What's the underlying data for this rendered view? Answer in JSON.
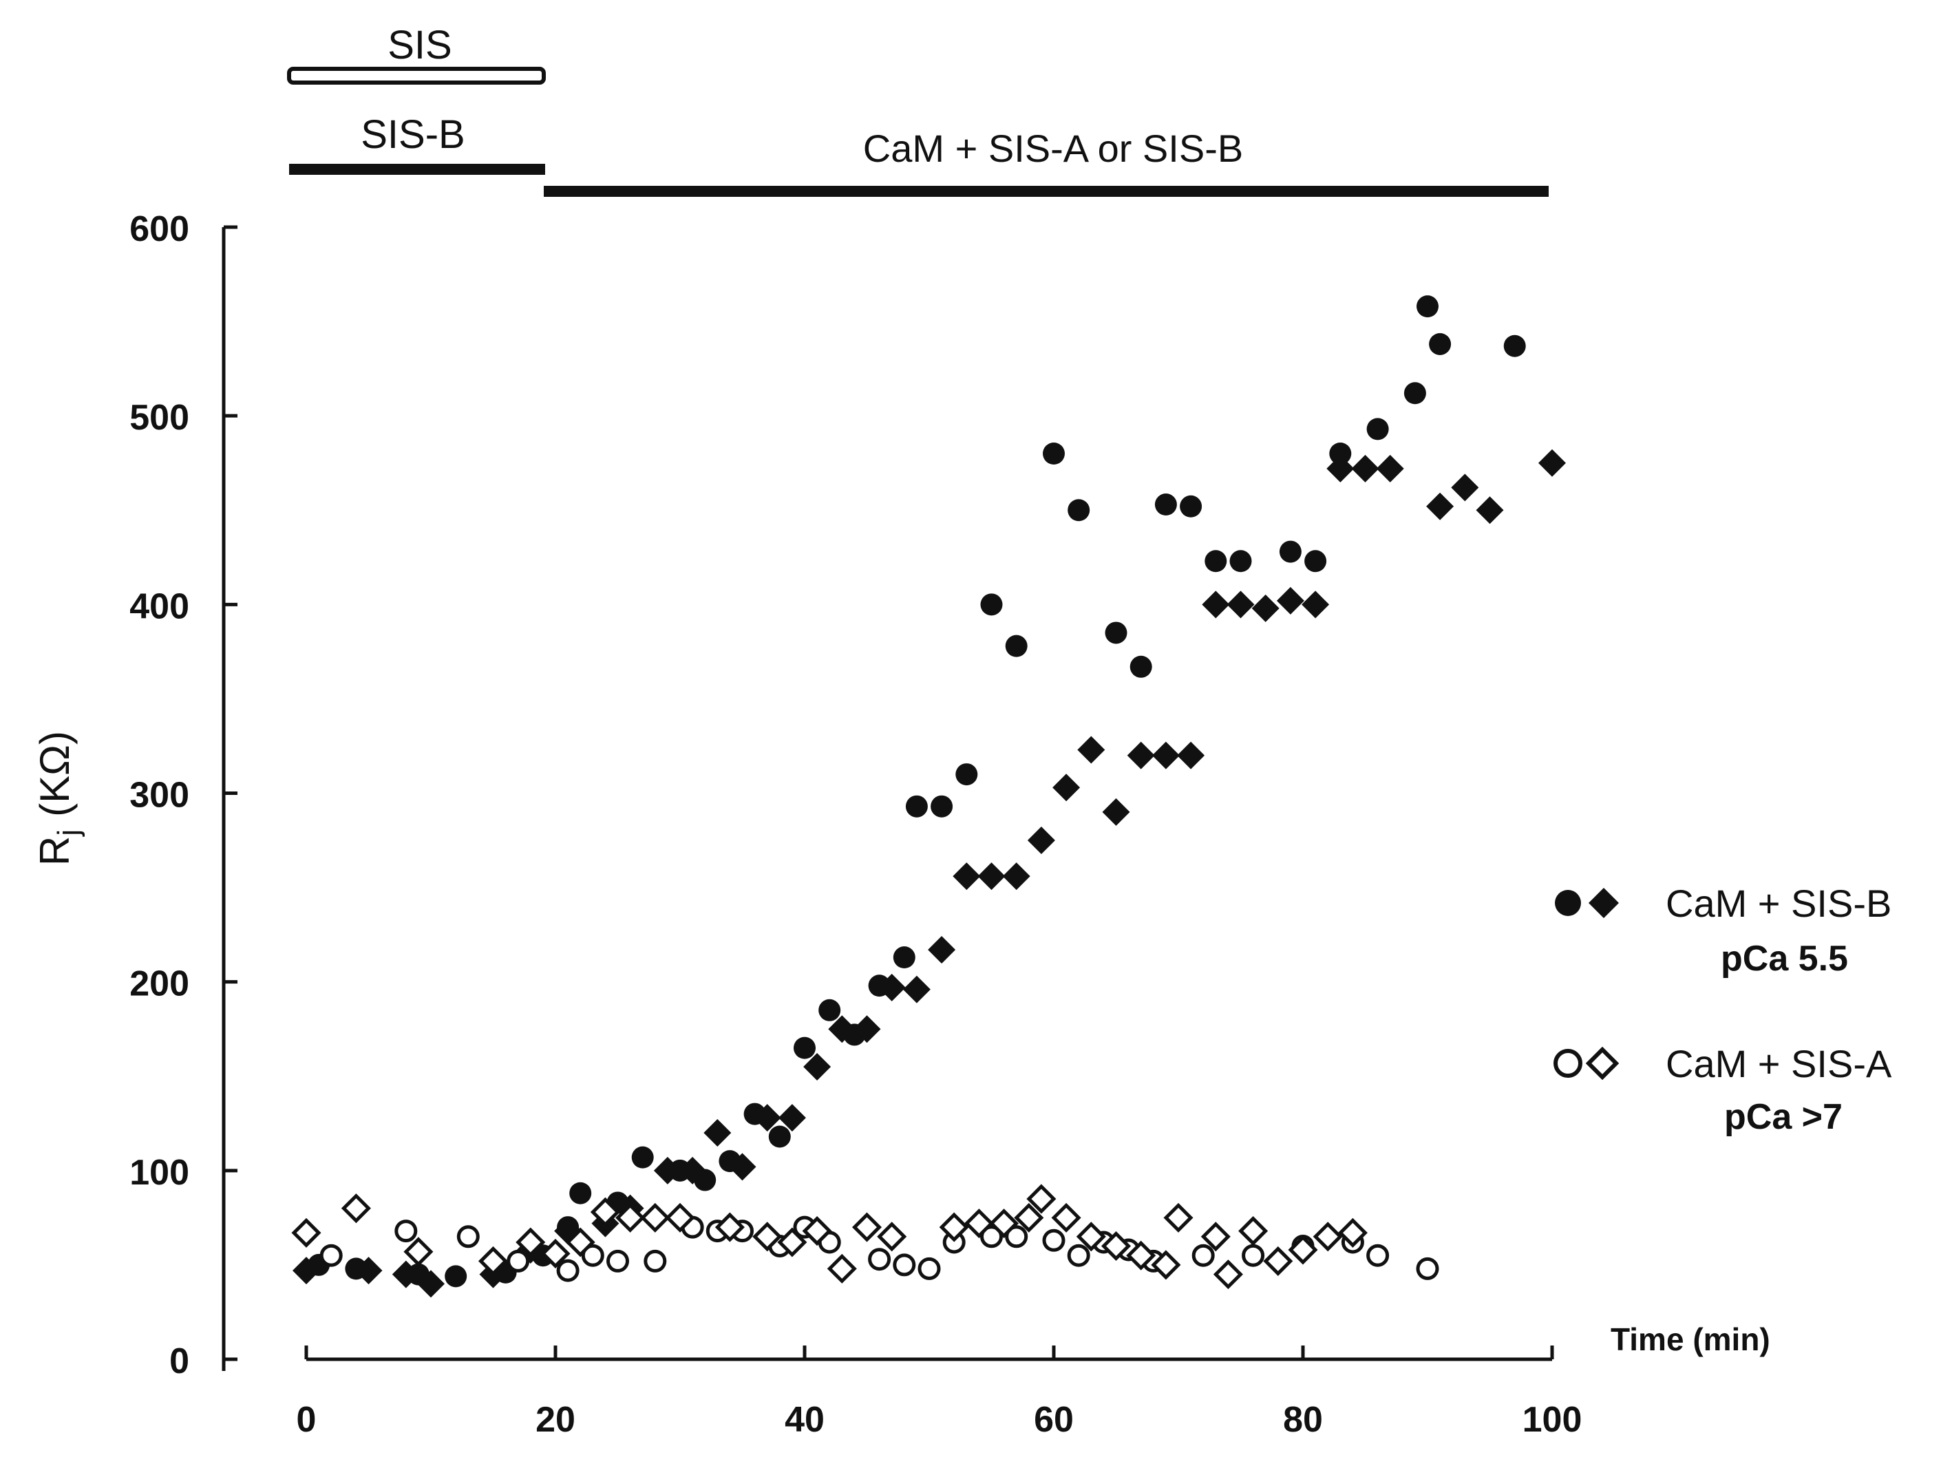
{
  "chart_data": {
    "type": "scatter",
    "ylabel": "R",
    "ylabel_subscript": "j",
    "ylabel_unit": "(KΩ)",
    "xlabel": "Time (min)",
    "xlim": [
      0,
      100
    ],
    "ylim": [
      0,
      600
    ],
    "xticks": [
      "0",
      "20",
      "40",
      "60",
      "80",
      "100"
    ],
    "yticks": [
      "0",
      "100",
      "200",
      "300",
      "400",
      "500",
      "600"
    ],
    "grid": false,
    "legend_position": "right",
    "annotations": {
      "sis_label": "SIS",
      "sisb_label": "SIS-B",
      "cam_label": "CaM + SIS-A or SIS-B"
    },
    "legend": [
      {
        "symbol": "●◆",
        "line1": "CaM + SIS-B",
        "line2": "pCa 5.5"
      },
      {
        "symbol": "○◇",
        "line1": "CaM + SIS-A",
        "line2": "pCa >7"
      }
    ],
    "series": [
      {
        "name": "CaM + SIS-B pCa 5.5 (circles)",
        "marker": "filled-circle",
        "points": [
          [
            1,
            50
          ],
          [
            4,
            48
          ],
          [
            9,
            45
          ],
          [
            12,
            44
          ],
          [
            16,
            46
          ],
          [
            19,
            55
          ],
          [
            21,
            70
          ],
          [
            22,
            88
          ],
          [
            25,
            83
          ],
          [
            27,
            107
          ],
          [
            30,
            100
          ],
          [
            32,
            95
          ],
          [
            34,
            105
          ],
          [
            36,
            130
          ],
          [
            38,
            118
          ],
          [
            40,
            165
          ],
          [
            42,
            185
          ],
          [
            44,
            172
          ],
          [
            46,
            198
          ],
          [
            48,
            213
          ],
          [
            49,
            293
          ],
          [
            51,
            293
          ],
          [
            53,
            310
          ],
          [
            55,
            400
          ],
          [
            57,
            378
          ],
          [
            60,
            480
          ],
          [
            62,
            450
          ],
          [
            65,
            385
          ],
          [
            67,
            367
          ],
          [
            69,
            453
          ],
          [
            71,
            452
          ],
          [
            73,
            423
          ],
          [
            75,
            423
          ],
          [
            79,
            428
          ],
          [
            81,
            423
          ],
          [
            83,
            480
          ],
          [
            86,
            493
          ],
          [
            89,
            512
          ],
          [
            90,
            558
          ],
          [
            91,
            538
          ],
          [
            97,
            537
          ]
        ]
      },
      {
        "name": "CaM + SIS-B pCa 5.5 (diamonds)",
        "marker": "filled-diamond",
        "points": [
          [
            0,
            47
          ],
          [
            5,
            47
          ],
          [
            8,
            45
          ],
          [
            10,
            40
          ],
          [
            15,
            45
          ],
          [
            18,
            58
          ],
          [
            21,
            68
          ],
          [
            24,
            72
          ],
          [
            26,
            80
          ],
          [
            29,
            100
          ],
          [
            31,
            100
          ],
          [
            33,
            120
          ],
          [
            35,
            102
          ],
          [
            37,
            128
          ],
          [
            39,
            128
          ],
          [
            41,
            155
          ],
          [
            43,
            175
          ],
          [
            45,
            175
          ],
          [
            47,
            197
          ],
          [
            49,
            196
          ],
          [
            51,
            217
          ],
          [
            53,
            256
          ],
          [
            55,
            256
          ],
          [
            57,
            256
          ],
          [
            59,
            275
          ],
          [
            61,
            303
          ],
          [
            63,
            323
          ],
          [
            65,
            290
          ],
          [
            67,
            320
          ],
          [
            69,
            320
          ],
          [
            71,
            320
          ],
          [
            73,
            400
          ],
          [
            75,
            400
          ],
          [
            77,
            398
          ],
          [
            79,
            402
          ],
          [
            81,
            400
          ],
          [
            83,
            472
          ],
          [
            85,
            472
          ],
          [
            87,
            472
          ],
          [
            91,
            452
          ],
          [
            93,
            462
          ],
          [
            95,
            450
          ],
          [
            100,
            475
          ]
        ]
      },
      {
        "name": "CaM + SIS-A pCa >7 (circles)",
        "marker": "open-circle",
        "points": [
          [
            2,
            55
          ],
          [
            8,
            68
          ],
          [
            13,
            65
          ],
          [
            17,
            52
          ],
          [
            21,
            47
          ],
          [
            23,
            55
          ],
          [
            25,
            52
          ],
          [
            28,
            52
          ],
          [
            31,
            70
          ],
          [
            33,
            68
          ],
          [
            35,
            68
          ],
          [
            38,
            60
          ],
          [
            40,
            70
          ],
          [
            42,
            62
          ],
          [
            46,
            53
          ],
          [
            48,
            50
          ],
          [
            50,
            48
          ],
          [
            52,
            62
          ],
          [
            55,
            65
          ],
          [
            57,
            65
          ],
          [
            60,
            63
          ],
          [
            62,
            55
          ],
          [
            64,
            62
          ],
          [
            66,
            58
          ],
          [
            68,
            52
          ],
          [
            72,
            55
          ],
          [
            76,
            55
          ],
          [
            80,
            60
          ],
          [
            84,
            62
          ],
          [
            86,
            55
          ],
          [
            90,
            48
          ]
        ]
      },
      {
        "name": "CaM + SIS-A pCa >7 (diamonds)",
        "marker": "open-diamond",
        "points": [
          [
            0,
            67
          ],
          [
            4,
            80
          ],
          [
            9,
            57
          ],
          [
            15,
            52
          ],
          [
            18,
            62
          ],
          [
            20,
            56
          ],
          [
            22,
            62
          ],
          [
            24,
            78
          ],
          [
            26,
            75
          ],
          [
            28,
            75
          ],
          [
            30,
            75
          ],
          [
            34,
            70
          ],
          [
            37,
            65
          ],
          [
            39,
            62
          ],
          [
            41,
            68
          ],
          [
            43,
            48
          ],
          [
            45,
            70
          ],
          [
            47,
            65
          ],
          [
            52,
            70
          ],
          [
            54,
            72
          ],
          [
            56,
            72
          ],
          [
            58,
            75
          ],
          [
            59,
            85
          ],
          [
            61,
            75
          ],
          [
            63,
            65
          ],
          [
            65,
            60
          ],
          [
            67,
            55
          ],
          [
            69,
            50
          ],
          [
            70,
            75
          ],
          [
            73,
            65
          ],
          [
            74,
            45
          ],
          [
            76,
            68
          ],
          [
            78,
            52
          ],
          [
            80,
            58
          ],
          [
            82,
            65
          ],
          [
            84,
            67
          ]
        ]
      }
    ]
  }
}
